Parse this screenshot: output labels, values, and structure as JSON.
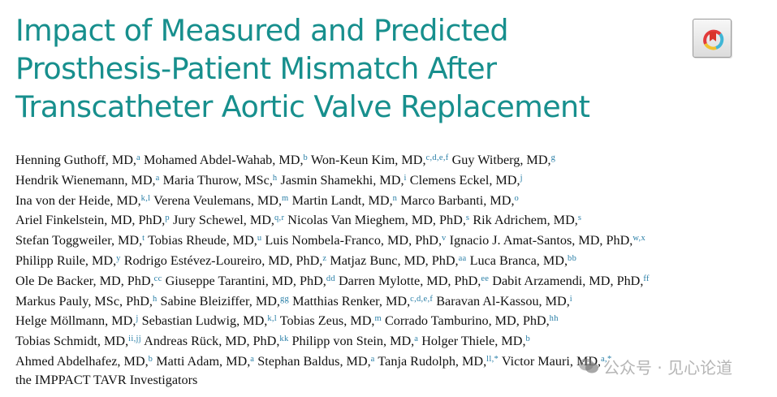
{
  "title": {
    "lines": [
      "Impact of Measured and Predicted",
      "Prosthesis-Patient Mismatch After",
      "Transcatheter Aortic Valve Replacement"
    ]
  },
  "badge": {
    "icon": "crossmark-icon"
  },
  "colors": {
    "title": "#178f8d",
    "affiliation": "#2a7fa7"
  },
  "authors": [
    [
      {
        "name": "Henning Guthoff, MD,",
        "aff": "a"
      },
      {
        "name": "Mohamed Abdel-Wahab, MD,",
        "aff": "b"
      },
      {
        "name": "Won-Keun Kim, MD,",
        "aff": "c,d,e,f"
      },
      {
        "name": "Guy Witberg, MD,",
        "aff": "g"
      }
    ],
    [
      {
        "name": "Hendrik Wienemann, MD,",
        "aff": "a"
      },
      {
        "name": "Maria Thurow, MSc,",
        "aff": "h"
      },
      {
        "name": "Jasmin Shamekhi, MD,",
        "aff": "i"
      },
      {
        "name": "Clemens Eckel, MD,",
        "aff": "j"
      }
    ],
    [
      {
        "name": "Ina von der Heide, MD,",
        "aff": "k,l"
      },
      {
        "name": "Verena Veulemans, MD,",
        "aff": "m"
      },
      {
        "name": "Martin Landt, MD,",
        "aff": "n"
      },
      {
        "name": "Marco Barbanti, MD,",
        "aff": "o"
      }
    ],
    [
      {
        "name": "Ariel Finkelstein, MD, PhD,",
        "aff": "p"
      },
      {
        "name": "Jury Schewel, MD,",
        "aff": "q,r"
      },
      {
        "name": "Nicolas Van Mieghem, MD, PhD,",
        "aff": "s"
      },
      {
        "name": "Rik Adrichem, MD,",
        "aff": "s"
      }
    ],
    [
      {
        "name": "Stefan Toggweiler, MD,",
        "aff": "t"
      },
      {
        "name": "Tobias Rheude, MD,",
        "aff": "u"
      },
      {
        "name": "Luis Nombela-Franco, MD, PhD,",
        "aff": "v"
      },
      {
        "name": "Ignacio J. Amat-Santos, MD, PhD,",
        "aff": "w,x"
      }
    ],
    [
      {
        "name": "Philipp Ruile, MD,",
        "aff": "y"
      },
      {
        "name": "Rodrigo Estévez-Loureiro, MD, PhD,",
        "aff": "z"
      },
      {
        "name": "Matjaz Bunc, MD, PhD,",
        "aff": "aa"
      },
      {
        "name": "Luca Branca, MD,",
        "aff": "bb"
      }
    ],
    [
      {
        "name": "Ole De Backer, MD, PhD,",
        "aff": "cc"
      },
      {
        "name": "Giuseppe Tarantini, MD, PhD,",
        "aff": "dd"
      },
      {
        "name": "Darren Mylotte, MD, PhD,",
        "aff": "ee"
      },
      {
        "name": "Dabit Arzamendi, MD, PhD,",
        "aff": "ff"
      }
    ],
    [
      {
        "name": "Markus Pauly, MSc, PhD,",
        "aff": "h"
      },
      {
        "name": "Sabine Bleiziffer, MD,",
        "aff": "gg"
      },
      {
        "name": "Matthias Renker, MD,",
        "aff": "c,d,e,f"
      },
      {
        "name": "Baravan Al-Kassou, MD,",
        "aff": "i"
      }
    ],
    [
      {
        "name": "Helge Möllmann, MD,",
        "aff": "j"
      },
      {
        "name": "Sebastian Ludwig, MD,",
        "aff": "k,l"
      },
      {
        "name": "Tobias Zeus, MD,",
        "aff": "m"
      },
      {
        "name": "Corrado Tamburino, MD, PhD,",
        "aff": "hh"
      }
    ],
    [
      {
        "name": "Tobias Schmidt, MD,",
        "aff": "ii,jj"
      },
      {
        "name": "Andreas Rück, MD, PhD,",
        "aff": "kk"
      },
      {
        "name": "Philipp von Stein, MD,",
        "aff": "a"
      },
      {
        "name": "Holger Thiele, MD,",
        "aff": "b"
      }
    ],
    [
      {
        "name": "Ahmed Abdelhafez, MD,",
        "aff": "b"
      },
      {
        "name": "Matti Adam, MD,",
        "aff": "a"
      },
      {
        "name": "Stephan Baldus, MD,",
        "aff": "a"
      },
      {
        "name": "Tanja Rudolph, MD,",
        "aff": "ll,*"
      },
      {
        "name": "Victor Mauri, MD,",
        "aff": "a,*"
      }
    ],
    [
      {
        "name": "the IMPPACT TAVR Investigators",
        "aff": ""
      }
    ]
  ],
  "watermark": {
    "icon": "wechat-icon",
    "text": "公众号 · 见心论道"
  }
}
